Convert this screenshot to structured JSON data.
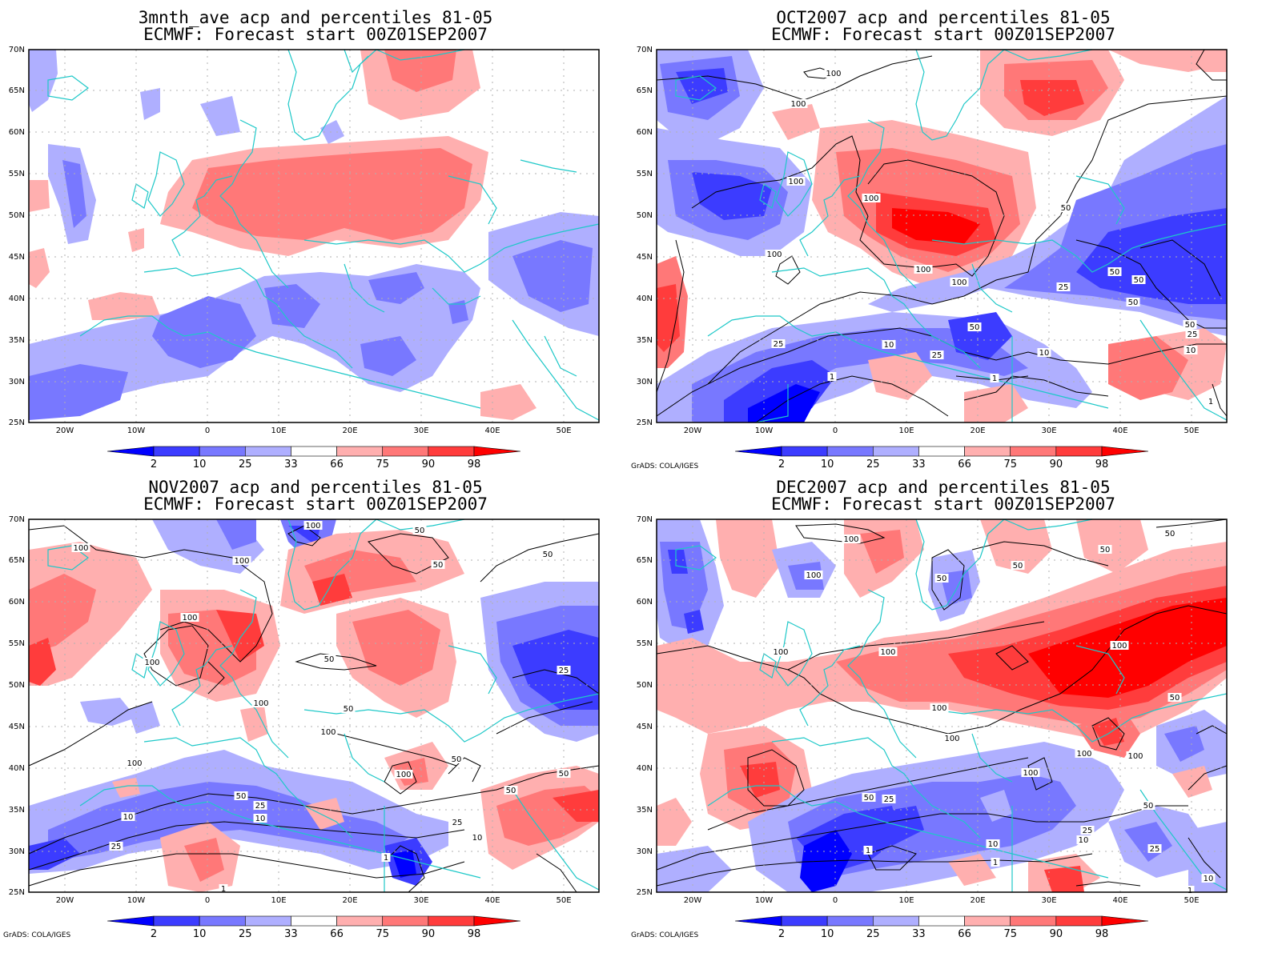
{
  "panels": [
    {
      "title_line1": "3mnth_ave acp and percentiles 81-05",
      "title_line2": "ECMWF: Forecast start 00Z01SEP2007",
      "credit": "",
      "contours": [],
      "contour_labels": []
    },
    {
      "title_line1": "OCT2007 acp and percentiles 81-05",
      "title_line2": "ECMWF: Forecast start 00Z01SEP2007",
      "credit": "GrADS: COLA/IGES",
      "contours": [
        "100",
        "100",
        "100",
        "100",
        "100",
        "100",
        "50",
        "50",
        "50",
        "50",
        "25",
        "25",
        "25",
        "10",
        "10",
        "1",
        "1"
      ],
      "contour_labels": [
        "100",
        "100",
        "100",
        "100",
        "100",
        "100",
        "100",
        "50",
        "50",
        "50",
        "50",
        "50",
        "50",
        "25",
        "25",
        "25",
        "25",
        "10",
        "10",
        "10",
        "1",
        "1",
        "1"
      ]
    },
    {
      "title_line1": "NOV2007 acp and percentiles 81-05",
      "title_line2": "ECMWF: Forecast start 00Z01SEP2007",
      "credit": "GrADS: COLA/IGES",
      "contours": [],
      "contour_labels": [
        "100",
        "100",
        "100",
        "100",
        "100",
        "100",
        "100",
        "100",
        "100",
        "50",
        "50",
        "50",
        "50",
        "50",
        "50",
        "50",
        "50",
        "50",
        "25",
        "25",
        "25",
        "25",
        "10",
        "10",
        "10",
        "1",
        "1"
      ]
    },
    {
      "title_line1": "DEC2007 acp and percentiles 81-05",
      "title_line2": "ECMWF: Forecast start 00Z01SEP2007",
      "credit": "GrADS: COLA/IGES",
      "contours": [],
      "contour_labels": [
        "100",
        "100",
        "100",
        "100",
        "100",
        "100",
        "100",
        "100",
        "100",
        "100",
        "50",
        "50",
        "50",
        "50",
        "50",
        "50",
        "50",
        "25",
        "25",
        "25",
        "10",
        "10",
        "10",
        "1",
        "1",
        "1"
      ]
    }
  ],
  "axes": {
    "lat_labels": [
      "70N",
      "65N",
      "60N",
      "55N",
      "50N",
      "45N",
      "40N",
      "35N",
      "30N",
      "25N"
    ],
    "lon_labels": [
      "20W",
      "10W",
      "0",
      "10E",
      "20E",
      "30E",
      "40E",
      "50E"
    ]
  },
  "colorbar": {
    "labels": [
      "2",
      "10",
      "25",
      "33",
      "66",
      "75",
      "90",
      "98"
    ],
    "colors": [
      "#0000ff",
      "#3c3cff",
      "#7878ff",
      "#afafff",
      "#ffffff",
      "#ffafaf",
      "#ff7878",
      "#ff3c3c",
      "#ff0000"
    ]
  },
  "colors": {
    "coastline": "#1ec8c8",
    "contour": "#000000",
    "grid": "#b0b0b0",
    "frame": "#000000"
  }
}
